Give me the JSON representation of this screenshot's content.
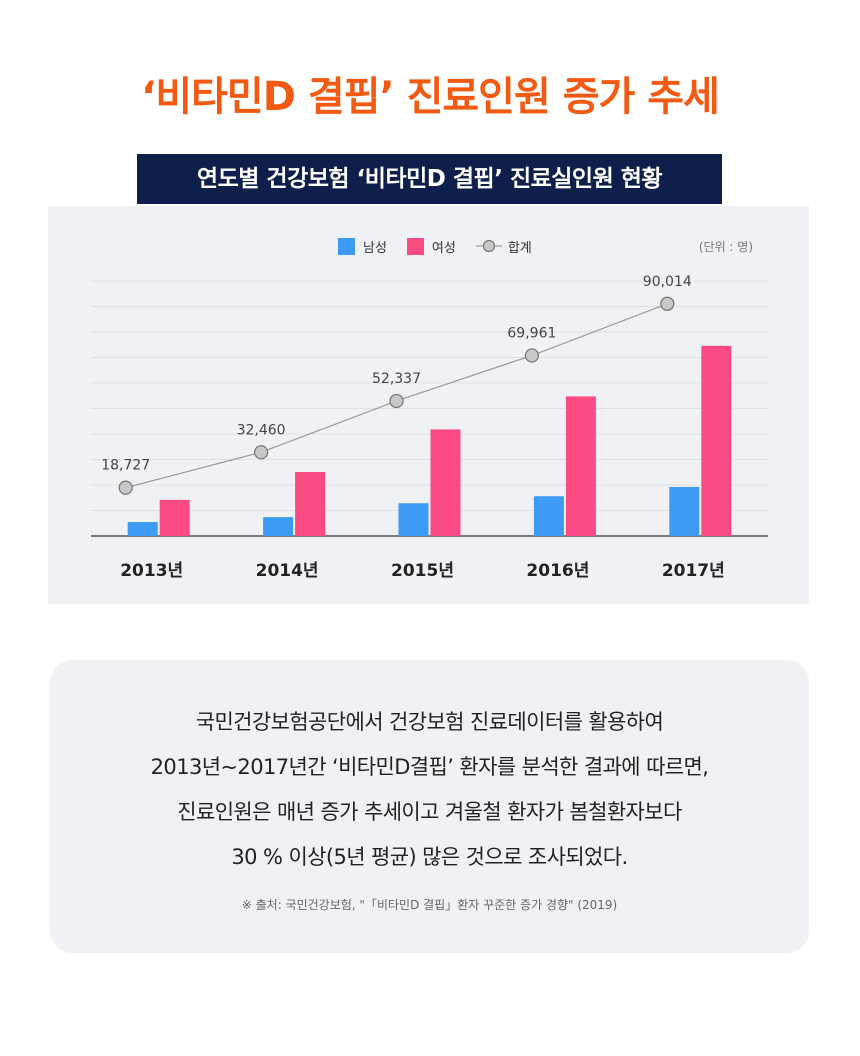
{
  "title": "‘비타민D 결핍’ 진료인원 증가 추세",
  "subtitle": "연도별 건강보험 ‘비타민D 결핍’ 진료실인원 현황",
  "unit_note": "(단위 : 명)",
  "colors": {
    "title": "#f25a12",
    "male": "#3d9bf6",
    "female": "#fc4a85",
    "total_line": "#999999",
    "subtitle_bg": "#0f1f4b"
  },
  "chart_data": {
    "type": "bar",
    "categories": [
      "2013년",
      "2014년",
      "2015년",
      "2016년",
      "2017년"
    ],
    "series": [
      {
        "name": "남성",
        "type": "bar",
        "values": [
          5400,
          7300,
          12700,
          15400,
          19000
        ]
      },
      {
        "name": "여성",
        "type": "bar",
        "values": [
          14000,
          24800,
          41300,
          54100,
          73700
        ]
      },
      {
        "name": "합계",
        "type": "line",
        "values": [
          18727,
          32460,
          52337,
          69961,
          90014
        ]
      }
    ],
    "data_labels": [
      "18,727",
      "32,460",
      "52,337",
      "69,961",
      "90,014"
    ],
    "ylim": [
      0,
      100000
    ],
    "grid": true,
    "legend": "top-center"
  },
  "description": [
    "국민건강보험공단에서 건강보험 진료데이터를 활용하여",
    "2013년∼2017년간 ‘비타민D결핍’ 환자를 분석한 결과에 따르면,",
    "진료인원은 매년 증가 추세이고 겨울철 환자가 봄철환자보다",
    "30 % 이상(5년 평균) 많은 것으로 조사되었다."
  ],
  "source": "※ 출처: 국민건강보험, \"「비타민D 결핍」환자 꾸준한 증가 경향\" (2019)"
}
